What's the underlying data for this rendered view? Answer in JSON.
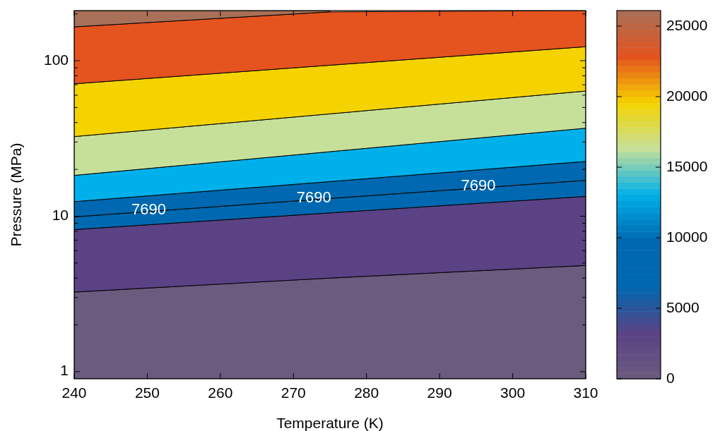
{
  "chart_data": {
    "type": "area",
    "xlabel": "Temperature (K)",
    "ylabel": "Pressure (MPa)",
    "log": "y",
    "grid": false,
    "stacked": true,
    "x": [
      240,
      275,
      310
    ],
    "xlim": [
      240,
      310
    ],
    "xticks": [
      240,
      250,
      260,
      270,
      280,
      290,
      300,
      310
    ],
    "ylim": [
      0.9,
      210
    ],
    "yticks": [
      1,
      {
        "value": 2,
        "label": null
      },
      {
        "value": 3,
        "label": null
      },
      {
        "value": 4,
        "label": null
      },
      {
        "value": 5,
        "label": null
      },
      {
        "value": 6,
        "label": null
      },
      {
        "value": 7,
        "label": null
      },
      {
        "value": 8,
        "label": null
      },
      {
        "value": 9,
        "label": null
      },
      10,
      {
        "value": 20,
        "label": null
      },
      {
        "value": 30,
        "label": null
      },
      {
        "value": 40,
        "label": null
      },
      {
        "value": 50,
        "label": null
      },
      {
        "value": 60,
        "label": null
      },
      {
        "value": 70,
        "label": null
      },
      {
        "value": 80,
        "label": null
      },
      {
        "value": 90,
        "label": null
      },
      100,
      {
        "value": 200,
        "label": null
      }
    ],
    "series": [
      {
        "color": "#6b5b7f",
        "values": [
          3.25,
          4.0,
          4.82
        ]
      },
      {
        "color": "#5a4285",
        "values": [
          4.95,
          6.5,
          8.58
        ]
      },
      {
        "color": "#0068b0",
        "values": [
          1.7,
          2.5,
          3.6
        ]
      },
      {
        "color": "#0068b0",
        "values": [
          2.5,
          3.7,
          5.5
        ]
      },
      {
        "color": "#00b0ea",
        "values": [
          5.9,
          9.3,
          14.3
        ]
      },
      {
        "color": "#c6e09a",
        "values": [
          14.2,
          19.5,
          27.0
        ]
      },
      {
        "color": "#f5d300",
        "values": [
          38.5,
          48.0,
          59.2
        ]
      },
      {
        "color": "#e5531f",
        "values": [
          94,
          112.5,
          87
        ]
      },
      {
        "color": "#a87058",
        "values": [
          45,
          4,
          null
        ]
      }
    ],
    "annotations": [
      {
        "text": "7690",
        "x": 250.2,
        "y": 10.72
      },
      {
        "text": "7690",
        "x": 272.8,
        "y": 12.78
      },
      {
        "text": "7690",
        "x": 295.3,
        "y": 15.18
      }
    ],
    "clim": [
      0,
      26100
    ],
    "cticks": [
      0,
      5000,
      10000,
      15000,
      20000,
      25000
    ]
  }
}
